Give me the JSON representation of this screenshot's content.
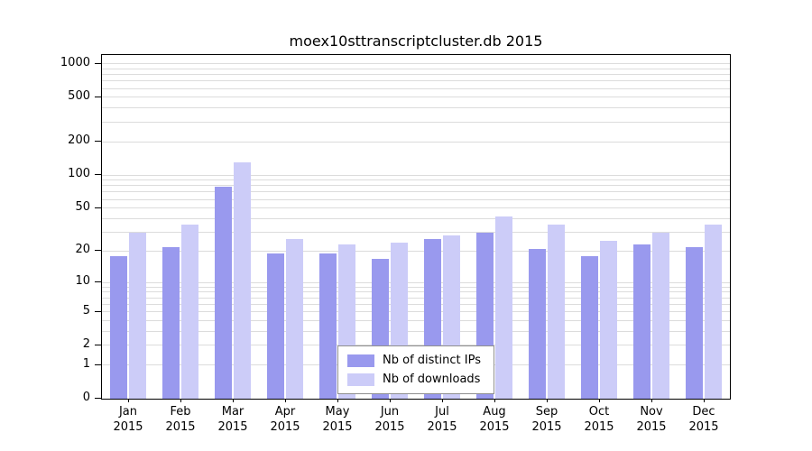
{
  "chart_data": {
    "type": "bar",
    "title": "moex10sttranscriptcluster.db 2015",
    "scale": "log10(value+1)",
    "grid": "horizontal",
    "legend_position": "bottom-center-inside",
    "categories": [
      {
        "month": "Jan",
        "year": "2015"
      },
      {
        "month": "Feb",
        "year": "2015"
      },
      {
        "month": "Mar",
        "year": "2015"
      },
      {
        "month": "Apr",
        "year": "2015"
      },
      {
        "month": "May",
        "year": "2015"
      },
      {
        "month": "Jun",
        "year": "2015"
      },
      {
        "month": "Jul",
        "year": "2015"
      },
      {
        "month": "Aug",
        "year": "2015"
      },
      {
        "month": "Sep",
        "year": "2015"
      },
      {
        "month": "Oct",
        "year": "2015"
      },
      {
        "month": "Nov",
        "year": "2015"
      },
      {
        "month": "Dec",
        "year": "2015"
      }
    ],
    "series": [
      {
        "name": "Nb of distinct IPs",
        "color": "#9999ee",
        "values": [
          18,
          22,
          78,
          19,
          19,
          17,
          26,
          30,
          21,
          18,
          23,
          22
        ]
      },
      {
        "name": "Nb of downloads",
        "color": "#ccccf8",
        "values": [
          30,
          35,
          130,
          26,
          23,
          24,
          28,
          42,
          35,
          25,
          30,
          35
        ]
      }
    ],
    "y_ticks": [
      1000,
      500,
      200,
      100,
      50,
      20,
      10,
      5,
      2,
      1,
      0
    ],
    "ylim": [
      0,
      1200
    ],
    "grid_values": [
      1,
      2,
      3,
      4,
      5,
      6,
      7,
      8,
      9,
      10,
      20,
      30,
      40,
      50,
      60,
      70,
      80,
      90,
      100,
      200,
      300,
      400,
      500,
      600,
      700,
      800,
      900,
      1000
    ]
  }
}
